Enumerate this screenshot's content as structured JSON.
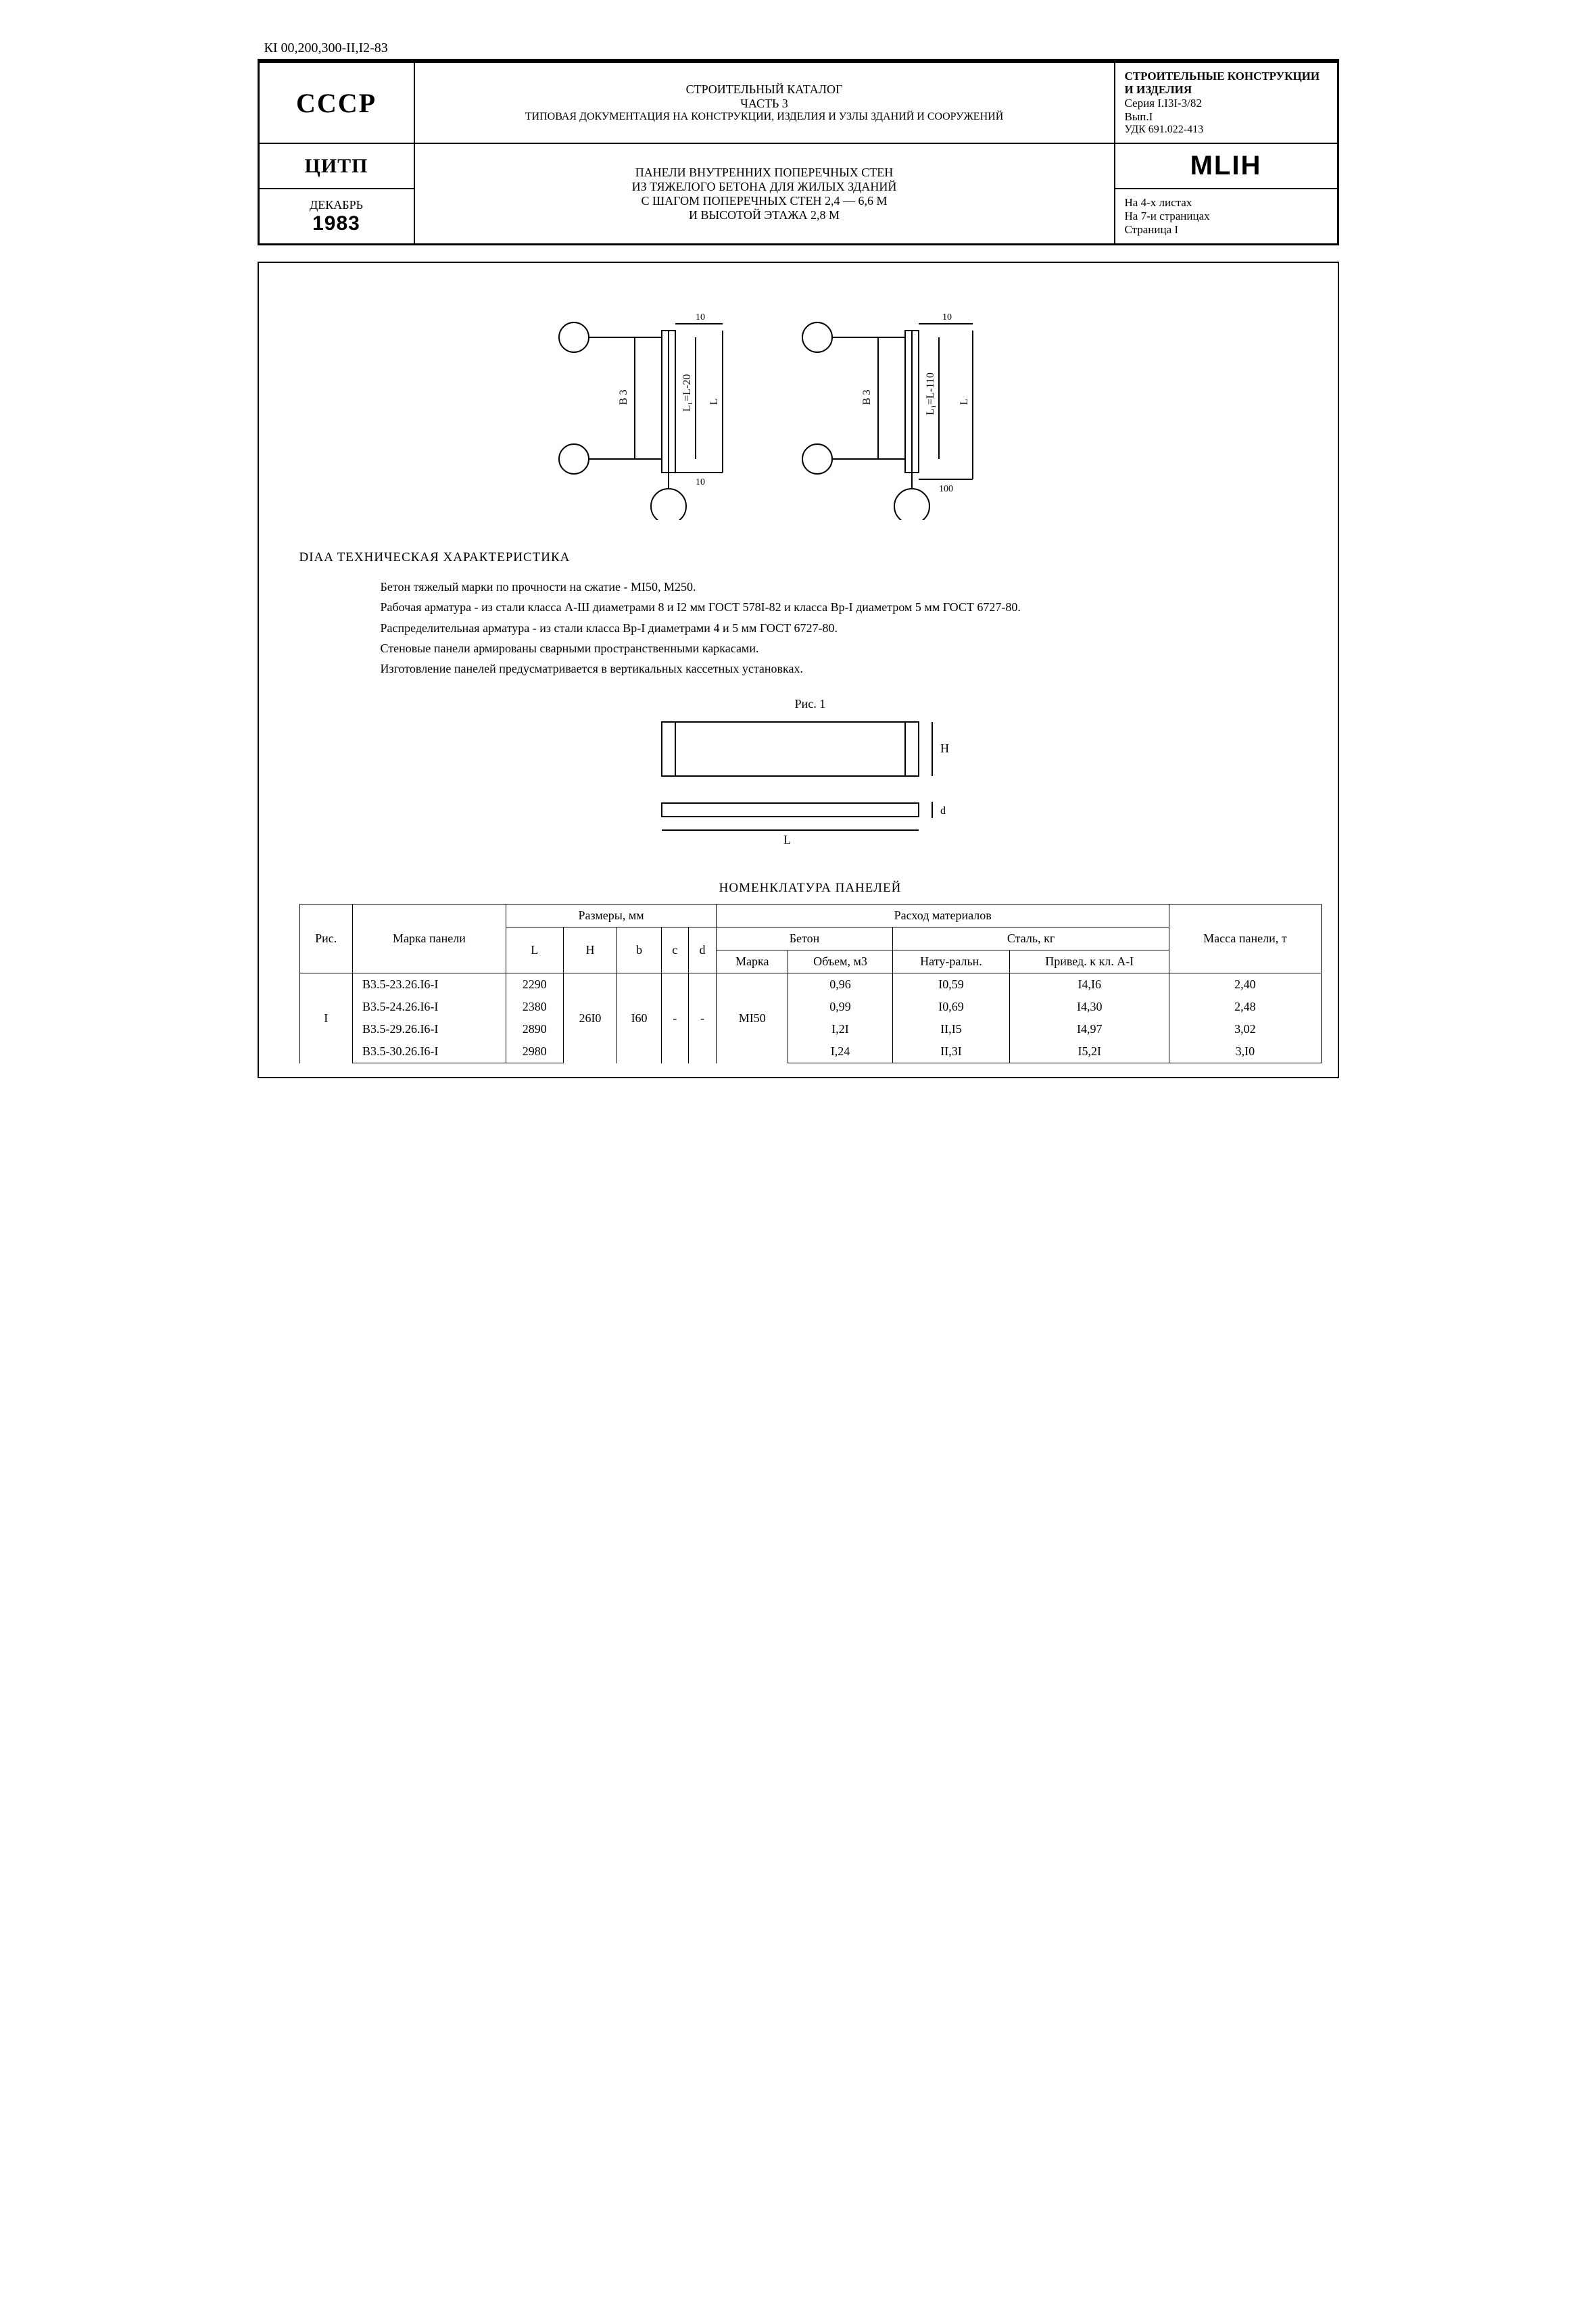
{
  "doc_code": "КI 00,200,300-II,I2-83",
  "header": {
    "country": "СССР",
    "org": "ЦИТП",
    "month": "ДЕКАБРЬ",
    "year": "1983",
    "catalog_line1": "СТРОИТЕЛЬНЫЙ КАТАЛОГ",
    "catalog_line2": "ЧАСТЬ 3",
    "catalog_line3": "ТИПОВАЯ ДОКУМЕНТАЦИЯ НА КОНСТРУКЦИИ, ИЗДЕЛИЯ И УЗЛЫ ЗДАНИЙ И СООРУЖЕНИЙ",
    "subject_l1": "ПАНЕЛИ ВНУТРЕННИХ ПОПЕРЕЧНЫХ СТЕН",
    "subject_l2": "ИЗ ТЯЖЕЛОГО БЕТОНА ДЛЯ ЖИЛЫХ ЗДАНИЙ",
    "subject_l3": "С ШАГОМ ПОПЕРЕЧНЫХ СТЕН 2,4 — 6,6 М",
    "subject_l4": "И ВЫСОТОЙ ЭТАЖА 2,8 М",
    "right_top_l1": "СТРОИТЕЛЬНЫЕ КОНСТРУКЦИИ И ИЗДЕЛИЯ",
    "right_top_l2": "Серия I.I3I-3/82",
    "right_top_l3": "Вып.I",
    "right_top_l4": "УДК 691.022-413",
    "mlih": "MLIH",
    "right_bot_l1": "На 4-х листах",
    "right_bot_l2": "На 7-и страницах",
    "right_bot_l3": "Страница I"
  },
  "diagram_top": {
    "labels": {
      "b": "В 3",
      "Lm": "L₁= L - 20",
      "L": "L",
      "t10a": "10",
      "t10b": "10",
      "b2": "В 3",
      "Lm2": "L₁= L -110",
      "L2": "L",
      "t10c": "10",
      "t100": "100"
    }
  },
  "tech": {
    "heading": "DIAA   ТЕХНИЧЕСКАЯ ХАРАКТЕРИСТИКА",
    "p1": "Бетон тяжелый марки по прочности на сжатие - МI50, М250.",
    "p2": "Рабочая арматура - из стали класса А-Ш диаметрами 8 и I2 мм ГОСТ 578I-82 и класса Вр-I диаметром 5 мм ГОСТ 6727-80.",
    "p3": "Распределительная арматура - из стали класса Вр-I диаметрами 4 и 5 мм ГОСТ 6727-80.",
    "p4": "Стеновые панели армированы сварными пространственными каркасами.",
    "p5": "Изготовление панелей предусматривается в вертикальных кассетных установках."
  },
  "fig1": {
    "label": "Рис. 1",
    "H": "H",
    "L": "L",
    "d": "d"
  },
  "nomen": {
    "title": "НОМЕНКЛАТУРА ПАНЕЛЕЙ",
    "head": {
      "ris": "Рис.",
      "marka_paneli": "Марка панели",
      "razmery": "Размеры, мм",
      "rashod": "Расход материалов",
      "massa": "Масса панели, т",
      "L": "L",
      "H": "H",
      "b": "b",
      "c": "c",
      "d": "d",
      "beton": "Бетон",
      "stal": "Сталь, кг",
      "marka": "Марка",
      "obem": "Объем, м3",
      "natur": "Нату-ральн.",
      "prived": "Привед. к кл. А-I"
    },
    "group_ris": "I",
    "group_H": "26I0",
    "group_b": "I60",
    "group_c": "-",
    "group_d": "-",
    "group_marka": "МI50",
    "rows": [
      {
        "marka": "В3.5-23.26.I6-I",
        "L": "2290",
        "obem": "0,96",
        "nat": "I0,59",
        "pri": "I4,I6",
        "mass": "2,40"
      },
      {
        "marka": "В3.5-24.26.I6-I",
        "L": "2380",
        "obem": "0,99",
        "nat": "I0,69",
        "pri": "I4,30",
        "mass": "2,48"
      },
      {
        "marka": "В3.5-29.26.I6-I",
        "L": "2890",
        "obem": "I,2I",
        "nat": "II,I5",
        "pri": "I4,97",
        "mass": "3,02"
      },
      {
        "marka": "В3.5-30.26.I6-I",
        "L": "2980",
        "obem": "I,24",
        "nat": "II,3I",
        "pri": "I5,2I",
        "mass": "3,I0"
      }
    ]
  },
  "colors": {
    "line": "#000000",
    "bg": "#ffffff"
  }
}
